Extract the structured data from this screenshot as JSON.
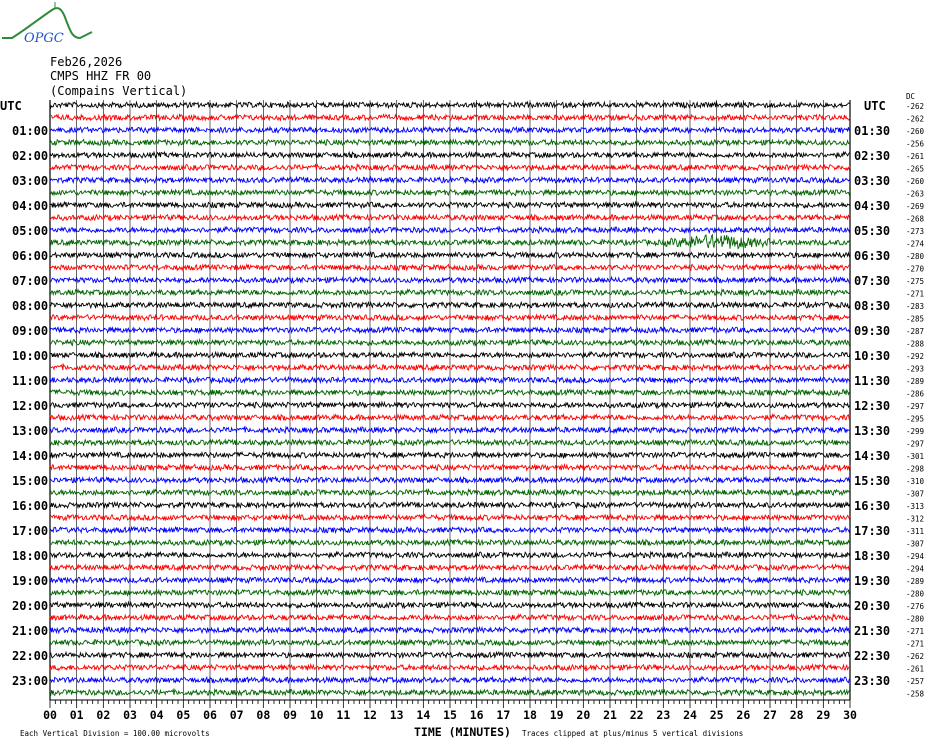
{
  "logo": {
    "text": "OPGC",
    "colors": {
      "curve": "#2e8b3a",
      "text": "#2255cc"
    }
  },
  "header": {
    "date": "Feb26,2026",
    "station": "CMPS HHZ FR 00",
    "location": "(Compains Vertical)"
  },
  "chart_data": {
    "type": "line",
    "subtype": "helicorder",
    "left_axis_title": "UTC",
    "right_axis_title": "UTC",
    "dc_label": "DC",
    "xlabel": "TIME (MINUTES)",
    "x_ticks": [
      "00",
      "01",
      "02",
      "03",
      "04",
      "05",
      "06",
      "07",
      "08",
      "09",
      "10",
      "11",
      "12",
      "13",
      "14",
      "15",
      "16",
      "17",
      "18",
      "19",
      "20",
      "21",
      "22",
      "23",
      "24",
      "25",
      "26",
      "27",
      "28",
      "29",
      "30"
    ],
    "xlim": [
      0,
      30
    ],
    "left_labels": [
      "",
      "01:00",
      "02:00",
      "03:00",
      "04:00",
      "05:00",
      "06:00",
      "07:00",
      "08:00",
      "09:00",
      "10:00",
      "11:00",
      "12:00",
      "13:00",
      "14:00",
      "15:00",
      "16:00",
      "17:00",
      "18:00",
      "19:00",
      "20:00",
      "21:00",
      "22:00",
      "23:00"
    ],
    "right_labels": [
      "",
      "01:30",
      "02:30",
      "03:30",
      "04:30",
      "05:30",
      "06:30",
      "07:30",
      "08:30",
      "09:30",
      "10:30",
      "11:30",
      "12:30",
      "13:30",
      "14:30",
      "15:30",
      "16:30",
      "17:30",
      "18:30",
      "19:30",
      "20:30",
      "21:30",
      "22:30",
      "23:30"
    ],
    "dc_offsets": [
      -262,
      -262,
      -260,
      -256,
      -261,
      -265,
      -260,
      -263,
      -269,
      -268,
      -273,
      -274,
      -280,
      -270,
      -275,
      -271,
      -283,
      -285,
      -287,
      -288,
      -292,
      -293,
      -289,
      -286,
      -297,
      -295,
      -299,
      -297,
      -301,
      -298,
      -310,
      -307,
      -313,
      -312,
      -311,
      -307,
      -294,
      -294,
      -289,
      -280,
      -276,
      -280,
      -271,
      -271,
      -262,
      -261,
      -257,
      -258
    ],
    "trace_colors": [
      "#000000",
      "#ff0000",
      "#0000ff",
      "#006400"
    ],
    "grid": true,
    "event": {
      "row_label": "05:30",
      "minutes": [
        23,
        27
      ]
    }
  },
  "footer": {
    "scale_note": "Each Vertical Division =  100.00 microvolts",
    "clip_note": "Traces clipped at plus/minus 5 vertical divisions"
  }
}
